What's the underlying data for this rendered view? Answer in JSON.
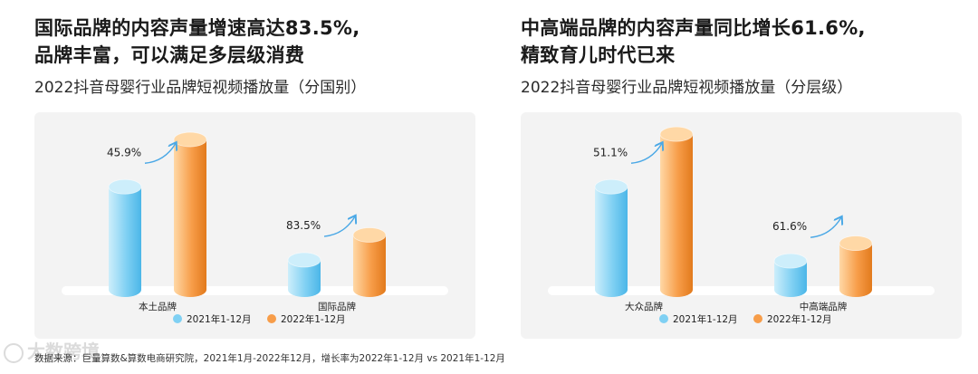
{
  "colors": {
    "blue_light": "#cdeefb",
    "blue": "#7fd0f3",
    "blue_dark": "#4bb6e8",
    "orange_light": "#ffd8a6",
    "orange": "#f79d49",
    "orange_dark": "#e27a1c",
    "arrow": "#4aa8e6"
  },
  "left": {
    "headline_line1": "国际品牌的内容声量增速高达83.5%,",
    "headline_line2": "品牌丰富，可以满足多层级消费",
    "subtitle": "2022抖音母婴行业品牌短视频播放量（分国别）"
  },
  "right": {
    "headline_line1": "中高端品牌的内容声量同比增长61.6%,",
    "headline_line2": "精致育儿时代已来",
    "subtitle": "2022抖音母婴行业品牌短视频播放量（分层级）"
  },
  "chart_data": [
    {
      "type": "bar",
      "title": "2022抖音母婴行业品牌短视频播放量（分国别）",
      "categories": [
        "本土品牌",
        "国际品牌"
      ],
      "series": [
        {
          "name": "2021年1-12月",
          "values": [
            100,
            29
          ]
        },
        {
          "name": "2022年1-12月",
          "values": [
            145.9,
            53.2
          ]
        }
      ],
      "growth_labels": [
        "45.9%",
        "83.5%"
      ],
      "ylim": [
        0,
        160
      ],
      "legend": "bottom"
    },
    {
      "type": "bar",
      "title": "2022抖音母婴行业品牌短视频播放量（分层级）",
      "categories": [
        "大众品牌",
        "中高端品牌"
      ],
      "series": [
        {
          "name": "2021年1-12月",
          "values": [
            100,
            28
          ]
        },
        {
          "name": "2022年1-12月",
          "values": [
            151.1,
            45.2
          ]
        }
      ],
      "growth_labels": [
        "51.1%",
        "61.6%"
      ],
      "ylim": [
        0,
        160
      ],
      "legend": "bottom"
    }
  ],
  "footnote": "数据来源：巨量算数&算数电商研究院，2021年1月-2022年12月，增长率为2022年1-12月 vs 2021年1-12月",
  "watermark": "大数跨境"
}
